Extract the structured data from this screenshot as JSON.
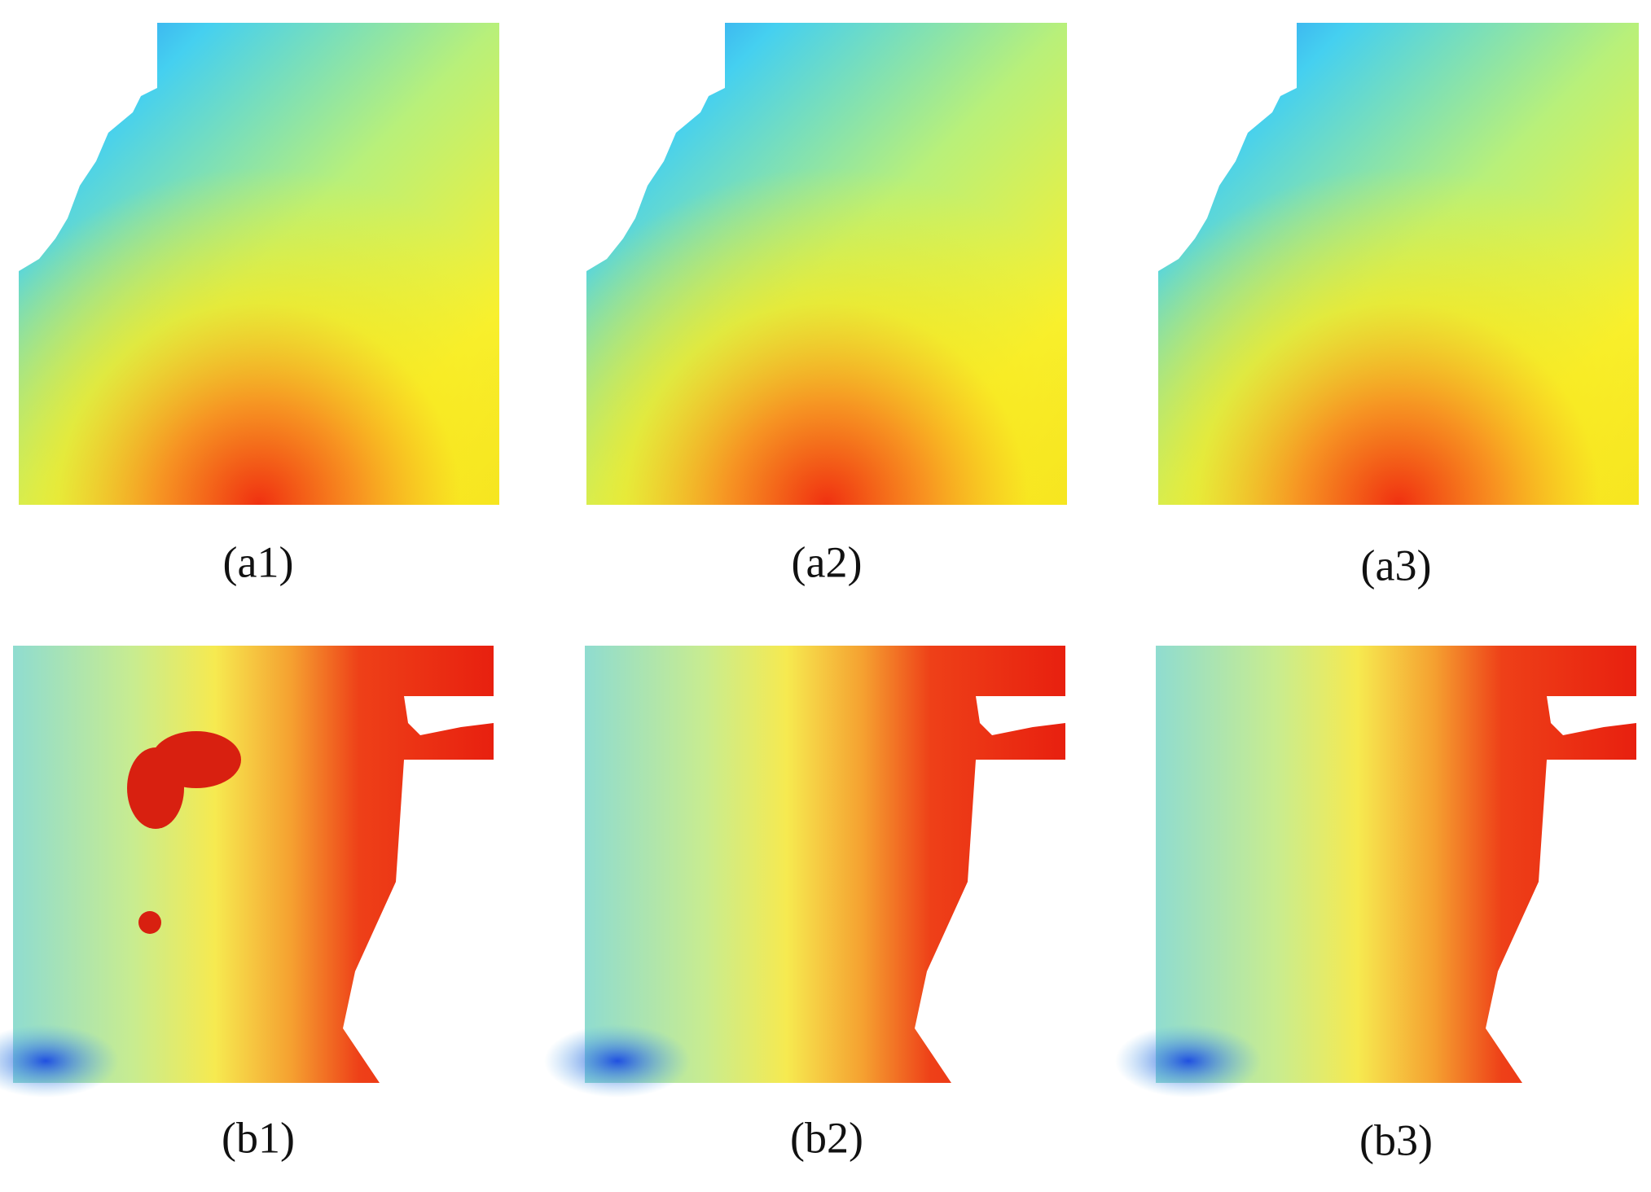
{
  "labels": [
    "(a1)",
    "(a2)",
    "(a3)",
    "(b1)",
    "(b2)",
    "(b3)"
  ]
}
